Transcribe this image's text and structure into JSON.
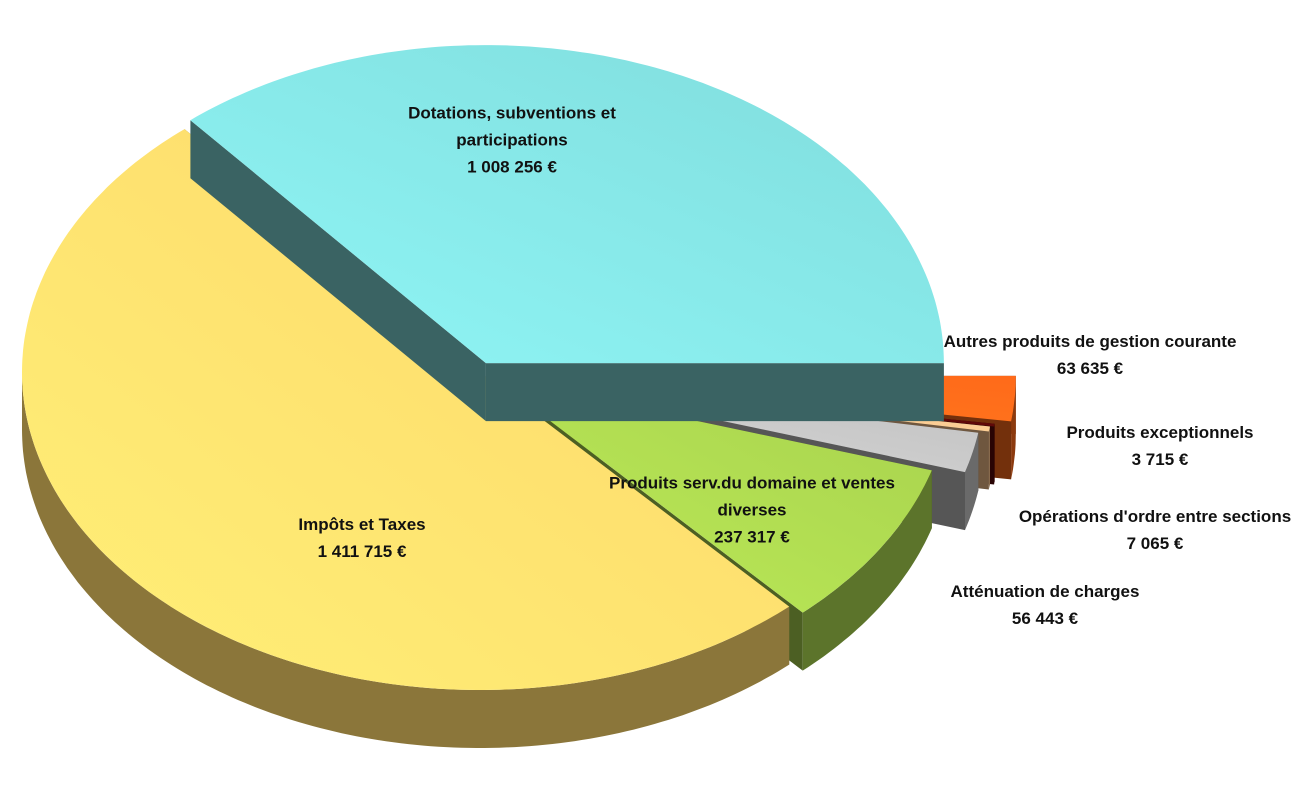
{
  "chart_data": {
    "type": "pie",
    "categories": [
      "Autres produits de gestion courante",
      "Produits exceptionnels",
      "Opérations d'ordre entre sections",
      "Atténuation de charges",
      "Produits serv.du domaine et ventes diverses",
      "Impôts et Taxes",
      "Dotations, subventions et participations"
    ],
    "values": [
      63635,
      3715,
      7065,
      56443,
      237317,
      1411715,
      1008256
    ],
    "value_labels": [
      "63 635 €",
      "3 715 €",
      "7 065 €",
      "56 443 €",
      "237 317 €",
      "1 411 715 €",
      "1 008 256 €"
    ],
    "colors": [
      "#ff6a1a",
      "#5a0808",
      "#f7c28c",
      "#c0c0c0",
      "#a8d24e",
      "#fdd66a",
      "#80dcdc"
    ]
  }
}
